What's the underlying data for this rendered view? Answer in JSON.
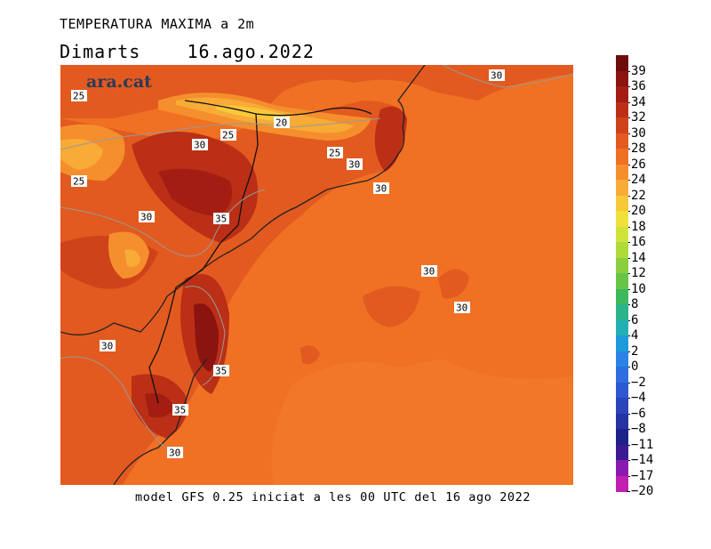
{
  "title": "TEMPERATURA MAXIMA a 2m",
  "subtitle": "Dimarts    16.ago.2022",
  "footer": "model GFS 0.25 iniciat a les 00 UTC del 16 ago 2022",
  "logo": "ara.cat",
  "colorbar": [
    {
      "label": "39",
      "color": "#6e0c0c"
    },
    {
      "label": "36",
      "color": "#8b1410"
    },
    {
      "label": "34",
      "color": "#a31d12"
    },
    {
      "label": "32",
      "color": "#ba2f16"
    },
    {
      "label": "30",
      "color": "#cf431a"
    },
    {
      "label": "28",
      "color": "#e25a1f"
    },
    {
      "label": "26",
      "color": "#f07024"
    },
    {
      "label": "24",
      "color": "#f58f2d"
    },
    {
      "label": "22",
      "color": "#f8ab36"
    },
    {
      "label": "20",
      "color": "#f9c83a"
    },
    {
      "label": "18",
      "color": "#efe03c"
    },
    {
      "label": "16",
      "color": "#d0e33a"
    },
    {
      "label": "14",
      "color": "#aedb3a"
    },
    {
      "label": "12",
      "color": "#8acf3e"
    },
    {
      "label": "10",
      "color": "#66c447"
    },
    {
      "label": "8",
      "color": "#3db85b"
    },
    {
      "label": "6",
      "color": "#2bb38a"
    },
    {
      "label": "4",
      "color": "#22b0b5"
    },
    {
      "label": "2",
      "color": "#1e9bd8"
    },
    {
      "label": "0",
      "color": "#2a84e6"
    },
    {
      "label": "−2",
      "color": "#2f6edf"
    },
    {
      "label": "−4",
      "color": "#2e58cf"
    },
    {
      "label": "−6",
      "color": "#2b44bb"
    },
    {
      "label": "−8",
      "color": "#2533a5"
    },
    {
      "label": "−11",
      "color": "#1d2288"
    },
    {
      "label": "−14",
      "color": "#3c1a8f"
    },
    {
      "label": "−17",
      "color": "#8a1ab0"
    },
    {
      "label": "−20",
      "color": "#c21fb3"
    }
  ],
  "contour_labels": [
    "30",
    "25",
    "30",
    "25",
    "20",
    "25",
    "30",
    "25",
    "30",
    "35",
    "30",
    "30",
    "30",
    "30",
    "35",
    "35",
    "30"
  ]
}
